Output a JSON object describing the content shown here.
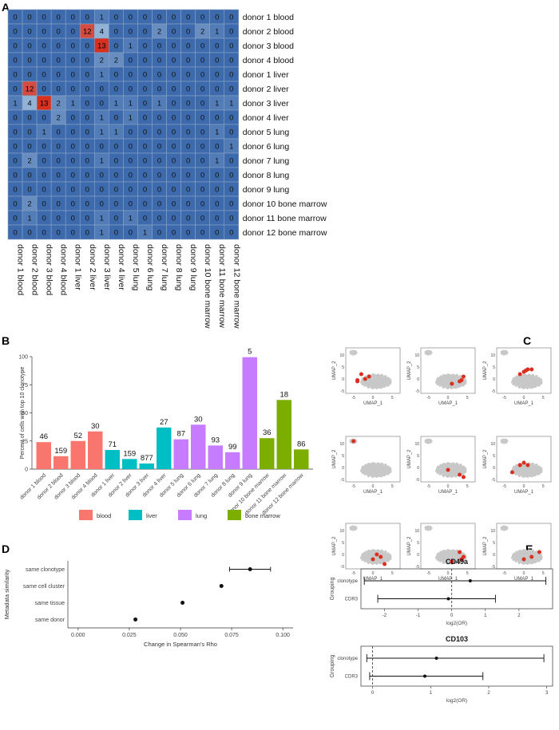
{
  "panel_labels": {
    "a": "A",
    "b": "B",
    "c": "C",
    "d": "D",
    "e": "E"
  },
  "colors": {
    "low": "#3d6aad",
    "mid": "#c8e0ef",
    "high": "#d7301f",
    "blood": "#f8766d",
    "liver": "#00bfc4",
    "lung": "#c77cff",
    "bone_marrow": "#7cae00",
    "umap_point": "#c8c8c8",
    "umap_hit": "#d7301f"
  },
  "chart_data": [
    {
      "id": "heatmap",
      "type": "heatmap",
      "rows": [
        "donor 1 blood",
        "donor 2 blood",
        "donor 3 blood",
        "donor 4 blood",
        "donor 1 liver",
        "donor 2 liver",
        "donor 3 liver",
        "donor 4 liver",
        "donor 5 lung",
        "donor 6 lung",
        "donor 7 lung",
        "donor 8 lung",
        "donor 9 lung",
        "donor 10 bone marrow",
        "donor 11 bone marrow",
        "donor 12 bone marrow"
      ],
      "columns": [
        "donor 1 blood",
        "donor 2 blood",
        "donor 3 blood",
        "donor 4 blood",
        "donor 1 liver",
        "donor 2 liver",
        "donor 3 liver",
        "donor 4 liver",
        "donor 5 lung",
        "donor 6 lung",
        "donor 7 lung",
        "donor 8 lung",
        "donor 9 lung",
        "donor 10 bone marrow",
        "donor 11 bone marrow",
        "donor 12 bone marrow"
      ],
      "values": [
        [
          0,
          0,
          0,
          0,
          0,
          0,
          1,
          0,
          0,
          0,
          0,
          0,
          0,
          0,
          0,
          0
        ],
        [
          0,
          0,
          0,
          0,
          0,
          12,
          4,
          0,
          0,
          0,
          2,
          0,
          0,
          2,
          1,
          0
        ],
        [
          0,
          0,
          0,
          0,
          0,
          0,
          13,
          0,
          1,
          0,
          0,
          0,
          0,
          0,
          0,
          0
        ],
        [
          0,
          0,
          0,
          0,
          0,
          0,
          2,
          2,
          0,
          0,
          0,
          0,
          0,
          0,
          0,
          0
        ],
        [
          0,
          0,
          0,
          0,
          0,
          0,
          1,
          0,
          0,
          0,
          0,
          0,
          0,
          0,
          0,
          0
        ],
        [
          0,
          12,
          0,
          0,
          0,
          0,
          0,
          0,
          0,
          0,
          0,
          0,
          0,
          0,
          0,
          0
        ],
        [
          1,
          4,
          13,
          2,
          1,
          0,
          0,
          1,
          1,
          0,
          1,
          0,
          0,
          0,
          1,
          1
        ],
        [
          0,
          0,
          0,
          2,
          0,
          0,
          1,
          0,
          1,
          0,
          0,
          0,
          0,
          0,
          0,
          0
        ],
        [
          0,
          0,
          1,
          0,
          0,
          0,
          1,
          1,
          0,
          0,
          0,
          0,
          0,
          0,
          1,
          0
        ],
        [
          0,
          0,
          0,
          0,
          0,
          0,
          0,
          0,
          0,
          0,
          0,
          0,
          0,
          0,
          0,
          1
        ],
        [
          0,
          2,
          0,
          0,
          0,
          0,
          1,
          0,
          0,
          0,
          0,
          0,
          0,
          0,
          1,
          0
        ],
        [
          0,
          0,
          0,
          0,
          0,
          0,
          0,
          0,
          0,
          0,
          0,
          0,
          0,
          0,
          0,
          0
        ],
        [
          0,
          0,
          0,
          0,
          0,
          0,
          0,
          0,
          0,
          0,
          0,
          0,
          0,
          0,
          0,
          0
        ],
        [
          0,
          2,
          0,
          0,
          0,
          0,
          0,
          0,
          0,
          0,
          0,
          0,
          0,
          0,
          0,
          0
        ],
        [
          0,
          1,
          0,
          0,
          0,
          0,
          1,
          0,
          1,
          0,
          0,
          0,
          0,
          0,
          0,
          0
        ],
        [
          0,
          0,
          0,
          0,
          0,
          0,
          1,
          0,
          0,
          1,
          0,
          0,
          0,
          0,
          0,
          0
        ]
      ]
    },
    {
      "id": "bar",
      "type": "bar",
      "ylabel": "Percent of cells with top 10 clonotype",
      "ylim": [
        0,
        100
      ],
      "yticks": [
        0,
        25,
        50,
        75,
        100
      ],
      "categories": [
        "donor 1 blood",
        "donor 2 blood",
        "donor 3 blood",
        "donor 4 blood",
        "donor 1 liver",
        "donor 2 liver",
        "donor 3 liver",
        "donor 4 liver",
        "donor 5 lung",
        "donor 6 lung",
        "donor 7 lung",
        "donor 8 lung",
        "donor 9 lung",
        "donor 10 bone marrow",
        "donor 11 bone marrow",
        "donor 12 bone marrow"
      ],
      "values": [
        24,
        11.5,
        25,
        33.5,
        17,
        9,
        5,
        37,
        26.5,
        39.5,
        21,
        15,
        99.5,
        27.5,
        61.5,
        17.5
      ],
      "labels": [
        "46",
        "159",
        "52",
        "30",
        "71",
        "159",
        "877",
        "27",
        "87",
        "30",
        "93",
        "99",
        "5",
        "36",
        "18",
        "86"
      ],
      "groups": [
        "blood",
        "blood",
        "blood",
        "blood",
        "liver",
        "liver",
        "liver",
        "liver",
        "lung",
        "lung",
        "lung",
        "lung",
        "lung",
        "bone_marrow",
        "bone_marrow",
        "bone_marrow"
      ],
      "legend": [
        {
          "key": "blood",
          "label": "blood"
        },
        {
          "key": "liver",
          "label": "liver"
        },
        {
          "key": "lung",
          "label": "lung"
        },
        {
          "key": "bone_marrow",
          "label": "bone marrow"
        }
      ]
    },
    {
      "id": "umap",
      "type": "scatter",
      "xlabel": "UMAP_1",
      "ylabel": "UMAP_2",
      "xticks": [
        -5,
        0,
        5
      ],
      "yticks": [
        -5,
        0,
        5,
        10
      ],
      "panels": [
        [
          [
            -4,
            -1
          ],
          [
            -3,
            2
          ],
          [
            -2,
            0
          ],
          [
            -1,
            1
          ],
          [
            -4,
            -0.5
          ]
        ],
        [
          [
            1,
            -2
          ],
          [
            4,
            1
          ],
          [
            3,
            -1
          ],
          [
            3.5,
            -0.5
          ]
        ],
        [
          [
            0,
            3
          ],
          [
            1,
            4
          ],
          [
            -1,
            2
          ],
          [
            2,
            4
          ],
          [
            0.5,
            3.5
          ]
        ],
        [
          [
            -5,
            11
          ]
        ],
        [
          [
            0,
            -1
          ],
          [
            3,
            -3
          ],
          [
            4,
            -4
          ]
        ],
        [
          [
            -3,
            -2
          ],
          [
            -1,
            1
          ],
          [
            0,
            2
          ],
          [
            1,
            1
          ]
        ],
        [
          [
            0,
            -2
          ],
          [
            1,
            0
          ],
          [
            3,
            -4
          ],
          [
            2,
            -1
          ]
        ],
        [
          [
            1,
            -3
          ],
          [
            4,
            -1
          ],
          [
            3,
            1
          ],
          [
            3.5,
            -2
          ]
        ],
        [
          [
            0,
            -2
          ],
          [
            4,
            1
          ],
          [
            2,
            -1
          ]
        ]
      ]
    },
    {
      "id": "rho",
      "type": "scatter",
      "xlabel": "Change in Spearman's Rho",
      "ylabel": "Metadata similarity",
      "xlim": [
        -0.005,
        0.105
      ],
      "xticks": [
        "0.000",
        "0.025",
        "0.050",
        "0.075",
        "0.100"
      ],
      "categories": [
        "same clonotype",
        "same cell cluster",
        "same tissue",
        "same donor"
      ],
      "values": [
        0.084,
        0.07,
        0.051,
        0.028
      ],
      "ci": [
        [
          0.074,
          0.094
        ],
        null,
        null,
        null
      ]
    },
    {
      "id": "cd49a",
      "type": "scatter",
      "title": "CD49a",
      "xlabel": "log2(OR)",
      "ylabel": "Grouping",
      "xlim": [
        -2.7,
        3.0
      ],
      "xticks": [
        "-2",
        "-1",
        "0",
        "1",
        "2"
      ],
      "categories": [
        "clonotype",
        "CDR3"
      ],
      "values": [
        0.55,
        -0.1
      ],
      "ci": [
        [
          -2.6,
          2.8
        ],
        [
          -2.2,
          1.3
        ]
      ]
    },
    {
      "id": "cd103",
      "type": "scatter",
      "title": "CD103",
      "xlabel": "log2(OR)",
      "ylabel": "Grouping",
      "xlim": [
        -0.2,
        3.1
      ],
      "xticks": [
        "0",
        "1",
        "2",
        "3"
      ],
      "categories": [
        "clonotype",
        "CDR3"
      ],
      "values": [
        1.1,
        0.9
      ],
      "ci": [
        [
          -0.1,
          2.95
        ],
        [
          -0.05,
          1.9
        ]
      ]
    }
  ]
}
